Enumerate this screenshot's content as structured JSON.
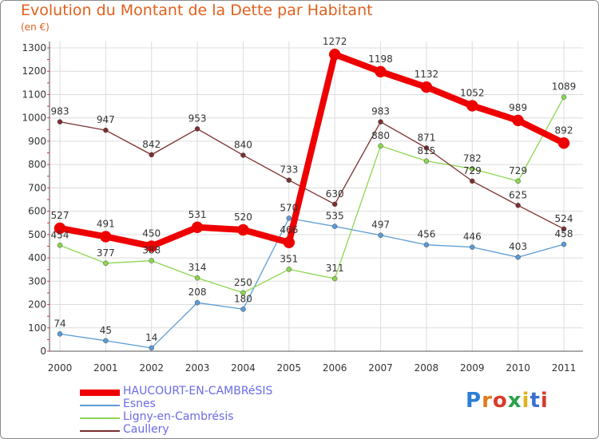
{
  "header": {
    "title": "Evolution du Montant de la Dette par Habitant",
    "subtitle": "(en €)"
  },
  "logo": {
    "text": "Proxiti",
    "letters": [
      "P",
      "r",
      "o",
      "x",
      "i",
      "t",
      "i"
    ],
    "colors": [
      "#2a7fd4",
      "#e07b1c",
      "#d93a2a",
      "#2aa04a",
      "#e0b21c",
      "#3a6fd4",
      "#d93a2a"
    ]
  },
  "chart_data": {
    "type": "line",
    "title": "Evolution du Montant de la Dette par Habitant",
    "subtitle": "(en €)",
    "x": [
      "2000",
      "2001",
      "2002",
      "2003",
      "2004",
      "2005",
      "2006",
      "2007",
      "2008",
      "2009",
      "2010",
      "2011"
    ],
    "ylim": [
      0,
      1300
    ],
    "yticks": [
      0,
      100,
      200,
      300,
      400,
      500,
      600,
      700,
      800,
      900,
      1000,
      1100,
      1200,
      1300
    ],
    "grid": true,
    "legend_position": "bottom-left",
    "series": [
      {
        "name": "HAUCOURT-EN-CAMBRéSIS",
        "color": "#ee0000",
        "width": 8,
        "marker": 7,
        "values": [
          527,
          491,
          450,
          531,
          520,
          466,
          1272,
          1198,
          1132,
          1052,
          989,
          892
        ]
      },
      {
        "name": "Esnes",
        "color": "#5b9bd5",
        "width": 1.3,
        "marker": 3,
        "values": [
          74,
          45,
          14,
          208,
          180,
          570,
          535,
          497,
          456,
          446,
          403,
          458
        ]
      },
      {
        "name": "Ligny-en-Cambrésis",
        "color": "#8cd650",
        "width": 1.3,
        "marker": 3,
        "values": [
          454,
          377,
          388,
          314,
          250,
          351,
          311,
          880,
          815,
          782,
          729,
          1089
        ]
      },
      {
        "name": "Caullery",
        "color": "#7b2f2f",
        "width": 1.3,
        "marker": 3,
        "values": [
          983,
          947,
          842,
          953,
          840,
          733,
          630,
          983,
          871,
          729,
          625,
          524
        ]
      }
    ]
  }
}
